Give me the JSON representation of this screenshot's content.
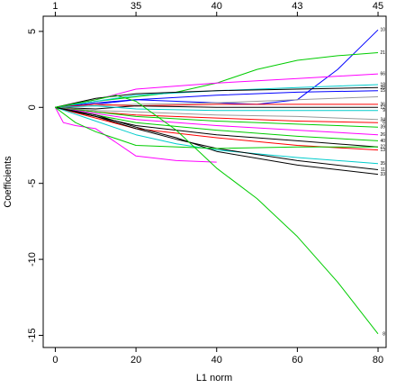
{
  "chart_data": {
    "type": "line",
    "title": "",
    "xlabel": "L1 norm",
    "ylabel": "Coefficients",
    "xlim": [
      -3,
      82
    ],
    "ylim": [
      -15.8,
      6
    ],
    "x_ticks": [
      0,
      20,
      40,
      60,
      80
    ],
    "y_ticks": [
      5,
      0,
      -5,
      -10,
      -15
    ],
    "top_ticks": [
      {
        "x": 0,
        "label": "1"
      },
      {
        "x": 20,
        "label": "35"
      },
      {
        "x": 40,
        "label": "40"
      },
      {
        "x": 60,
        "label": "43"
      },
      {
        "x": 80,
        "label": "45"
      }
    ],
    "grid": false,
    "legend": "none",
    "end_labels": [
      {
        "y": 5.1,
        "label": "10"
      },
      {
        "y": 3.6,
        "label": "21"
      },
      {
        "y": 2.2,
        "label": "66"
      },
      {
        "y": 1.5,
        "label": "18"
      },
      {
        "y": 1.3,
        "label": "28"
      },
      {
        "y": 1.1,
        "label": "15"
      },
      {
        "y": 0.2,
        "label": "36"
      },
      {
        "y": 0.0,
        "label": "12"
      },
      {
        "y": -0.2,
        "label": "9"
      },
      {
        "y": -0.8,
        "label": "34"
      },
      {
        "y": -1.0,
        "label": "6"
      },
      {
        "y": -1.3,
        "label": "39"
      },
      {
        "y": -1.8,
        "label": "26"
      },
      {
        "y": -2.2,
        "label": "40"
      },
      {
        "y": -2.6,
        "label": "22"
      },
      {
        "y": -2.8,
        "label": "13"
      },
      {
        "y": -3.7,
        "label": "35"
      },
      {
        "y": -4.1,
        "label": "11"
      },
      {
        "y": -4.4,
        "label": "33"
      },
      {
        "y": -14.9,
        "label": "8"
      }
    ],
    "series": [
      {
        "color": "#0000ff",
        "x": [
          0,
          10,
          20,
          30,
          40,
          50,
          60,
          70,
          80
        ],
        "y": [
          0,
          0.3,
          0.5,
          0.4,
          0.3,
          0.2,
          0.5,
          2.5,
          5.1
        ]
      },
      {
        "color": "#00cc00",
        "x": [
          0,
          10,
          20,
          30,
          40,
          50,
          60,
          70,
          80
        ],
        "y": [
          0,
          0.4,
          0.7,
          1.0,
          1.6,
          2.5,
          3.1,
          3.4,
          3.6
        ]
      },
      {
        "color": "#ff00ff",
        "x": [
          0,
          10,
          20,
          40,
          60,
          80
        ],
        "y": [
          0,
          0.5,
          1.2,
          1.6,
          1.9,
          2.2
        ]
      },
      {
        "color": "#00cccc",
        "x": [
          0,
          10,
          20,
          40,
          60,
          80
        ],
        "y": [
          0,
          0.4,
          0.8,
          1.1,
          1.3,
          1.5
        ]
      },
      {
        "color": "#000000",
        "x": [
          0,
          10,
          20,
          40,
          60,
          80
        ],
        "y": [
          0,
          0.6,
          0.9,
          1.1,
          1.2,
          1.3
        ]
      },
      {
        "color": "#0000ff",
        "x": [
          0,
          10,
          20,
          40,
          60,
          80
        ],
        "y": [
          0,
          0.2,
          0.5,
          0.8,
          1.0,
          1.1
        ]
      },
      {
        "color": "#999999",
        "x": [
          0,
          10,
          20,
          40,
          60,
          80
        ],
        "y": [
          0,
          0.1,
          0.2,
          0.3,
          0.5,
          0.7
        ]
      },
      {
        "color": "#ff0000",
        "x": [
          0,
          10,
          20,
          40,
          60,
          80
        ],
        "y": [
          0,
          0.2,
          0.1,
          0.2,
          0.2,
          0.2
        ]
      },
      {
        "color": "#000000",
        "x": [
          0,
          10,
          20,
          40,
          60,
          80
        ],
        "y": [
          0,
          -0.1,
          0.1,
          0.0,
          0.0,
          0.0
        ]
      },
      {
        "color": "#00cccc",
        "x": [
          0,
          10,
          20,
          40,
          60,
          80
        ],
        "y": [
          0,
          0.1,
          -0.1,
          -0.2,
          -0.2,
          -0.2
        ]
      },
      {
        "color": "#999999",
        "x": [
          0,
          10,
          20,
          40,
          60,
          80
        ],
        "y": [
          0,
          -0.2,
          -0.3,
          -0.5,
          -0.6,
          -0.8
        ]
      },
      {
        "color": "#ff0000",
        "x": [
          0,
          10,
          20,
          40,
          60,
          80
        ],
        "y": [
          0,
          -0.3,
          -0.5,
          -0.7,
          -0.9,
          -1.0
        ]
      },
      {
        "color": "#00cc00",
        "x": [
          0,
          10,
          20,
          40,
          60,
          80
        ],
        "y": [
          0,
          -0.3,
          -0.6,
          -0.9,
          -1.1,
          -1.3
        ]
      },
      {
        "color": "#ff00ff",
        "x": [
          0,
          10,
          20,
          40,
          60,
          80
        ],
        "y": [
          0,
          -0.4,
          -0.8,
          -1.2,
          -1.5,
          -1.8
        ]
      },
      {
        "color": "#00cc00",
        "x": [
          0,
          10,
          20,
          40,
          60,
          80
        ],
        "y": [
          0,
          -0.5,
          -1.0,
          -1.5,
          -1.9,
          -2.2
        ]
      },
      {
        "color": "#000000",
        "x": [
          0,
          10,
          20,
          40,
          60,
          80
        ],
        "y": [
          0,
          -0.6,
          -1.2,
          -1.8,
          -2.2,
          -2.6
        ]
      },
      {
        "color": "#ff0000",
        "x": [
          0,
          10,
          20,
          40,
          60,
          80
        ],
        "y": [
          0,
          -0.7,
          -1.4,
          -2.0,
          -2.5,
          -2.8
        ]
      },
      {
        "color": "#00cccc",
        "x": [
          0,
          10,
          20,
          30,
          40,
          60,
          80
        ],
        "y": [
          0,
          -0.9,
          -1.8,
          -2.4,
          -2.8,
          -3.3,
          -3.7
        ]
      },
      {
        "color": "#000000",
        "x": [
          0,
          10,
          20,
          30,
          40,
          60,
          80
        ],
        "y": [
          0,
          -0.6,
          -1.4,
          -2.1,
          -2.7,
          -3.5,
          -4.1
        ]
      },
      {
        "color": "#000000",
        "x": [
          0,
          10,
          20,
          30,
          40,
          60,
          80
        ],
        "y": [
          0,
          -0.5,
          -1.3,
          -2.0,
          -2.9,
          -3.8,
          -4.4
        ]
      },
      {
        "color": "#ff00ff",
        "x": [
          0,
          2,
          5,
          10,
          20,
          30,
          40
        ],
        "y": [
          0,
          -1.0,
          -1.2,
          -1.4,
          -3.2,
          -3.5,
          -3.6
        ]
      },
      {
        "color": "#00cc00",
        "x": [
          0,
          5,
          10,
          20,
          40,
          60,
          80
        ],
        "y": [
          0,
          -1.0,
          -1.6,
          -2.5,
          -2.7,
          -2.6,
          -2.6
        ]
      },
      {
        "color": "#00cc00",
        "x": [
          0,
          10,
          15,
          20,
          30,
          40,
          50,
          60,
          70,
          80
        ],
        "y": [
          0,
          0.5,
          0.8,
          0.4,
          -1.5,
          -4.0,
          -6.0,
          -8.5,
          -11.5,
          -14.9
        ]
      }
    ]
  }
}
